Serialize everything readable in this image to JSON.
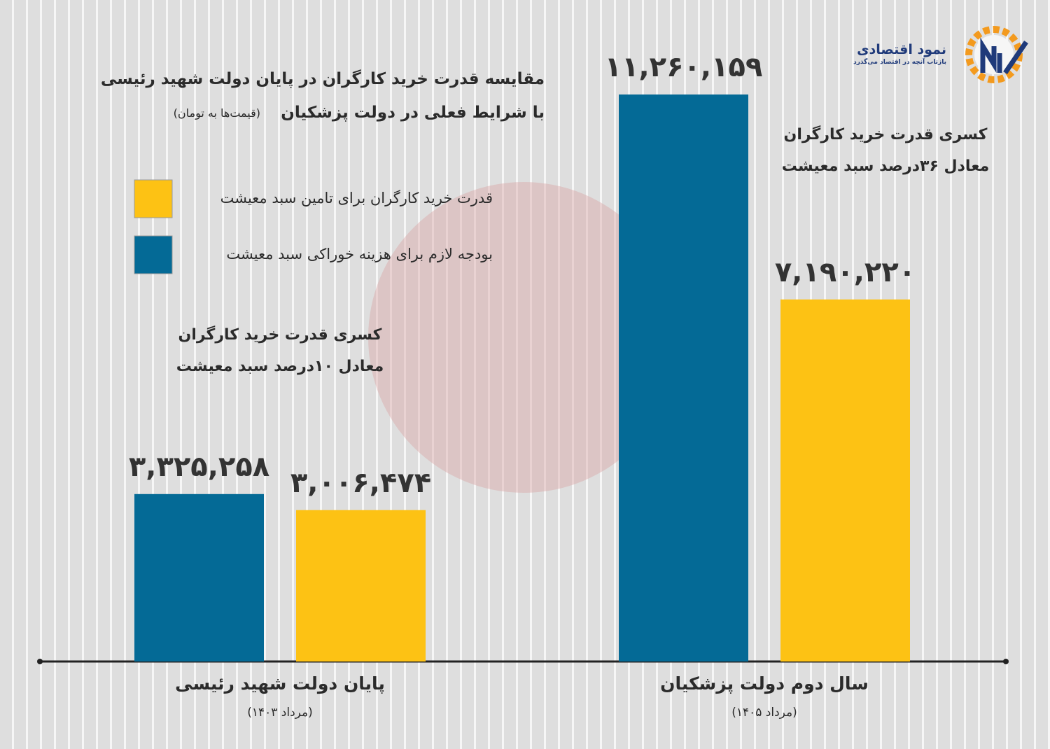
{
  "chart_data": {
    "type": "bar",
    "title": "مقایسه قدرت خرید کارگران در پایان دولت شهید رئیسی",
    "subtitle": "با شرایط فعلی در دولت پزشکیان",
    "unit_note": "(قیمت‌ها به تومان)",
    "categories": [
      "پایان دولت شهید رئیسی",
      "سال دوم دولت پزشکیان"
    ],
    "category_notes": [
      "(مرداد ۱۴۰۳)",
      "(مرداد ۱۴۰۵)"
    ],
    "series": [
      {
        "name": "قدرت خرید کارگران برای تامین سبد معیشت",
        "color": "#fdc214",
        "values": [
          3006474,
          7190220
        ],
        "value_labels": [
          "۳,۰۰۶,۴۷۴",
          "۷,۱۹۰,۲۲۰"
        ]
      },
      {
        "name": "بودجه لازم برای هزینه خوراکی سبد معیشت",
        "color": "#046a96",
        "values": [
          3325258,
          11260159
        ],
        "value_labels": [
          "۳,۳۲۵,۲۵۸",
          "۱۱,۲۶۰,۱۵۹"
        ]
      }
    ],
    "annotations": [
      [
        "کسری قدرت خرید کارگران",
        "معادل ۱۰درصد سبد معیشت"
      ],
      [
        "کسری قدرت خرید کارگران",
        "معادل ۳۶درصد سبد معیشت"
      ]
    ]
  },
  "brand": {
    "name": "نمود اقتصادی",
    "tagline": "بازتاب آنچه در اقتصاد می‌گذرد"
  }
}
